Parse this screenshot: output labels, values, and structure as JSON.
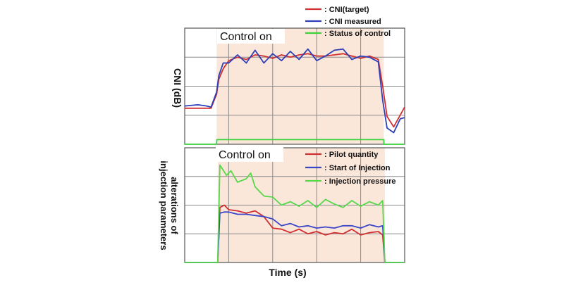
{
  "chart_data": [
    {
      "type": "line",
      "ylabel": "CNI (dB)",
      "annotation": "Control on",
      "grid": true,
      "legend_position": "top-right",
      "xlim": [
        0,
        10
      ],
      "ylim": [
        0,
        10
      ],
      "colors": {
        "target": "#d03030",
        "measured": "#2f3fb8",
        "control": "#3cd23c",
        "shade": "#fbe7da"
      },
      "series": [
        {
          "name": ": CNI(target)",
          "x": [
            0,
            1.2,
            1.45,
            1.55,
            1.75,
            2.0,
            2.4,
            2.8,
            3.2,
            3.6,
            4.0,
            4.4,
            4.8,
            5.2,
            5.6,
            6.0,
            6.4,
            6.8,
            7.2,
            7.6,
            8.0,
            8.4,
            8.8,
            9.0,
            9.2,
            9.5,
            10
          ],
          "y": [
            3.1,
            3.1,
            4.3,
            5.6,
            6.5,
            7.2,
            7.5,
            7.3,
            7.7,
            7.6,
            7.4,
            7.7,
            7.5,
            7.7,
            7.8,
            7.6,
            7.6,
            7.7,
            7.8,
            7.6,
            7.4,
            7.6,
            7.3,
            5.0,
            2.4,
            1.5,
            3.2
          ]
        },
        {
          "name": ": CNI measured",
          "x": [
            0,
            0.6,
            1.0,
            1.2,
            1.45,
            1.55,
            1.75,
            2.0,
            2.4,
            2.8,
            3.2,
            3.6,
            4.0,
            4.4,
            4.8,
            5.2,
            5.6,
            6.0,
            6.4,
            6.8,
            7.2,
            7.6,
            8.0,
            8.4,
            8.8,
            9.0,
            9.2,
            9.5,
            9.8,
            10
          ],
          "y": [
            3.3,
            3.4,
            3.3,
            3.2,
            4.5,
            5.9,
            7.0,
            7.0,
            7.7,
            7.0,
            8.1,
            7.0,
            7.8,
            7.2,
            8.0,
            7.3,
            8.2,
            7.2,
            7.6,
            8.1,
            8.2,
            7.3,
            7.6,
            7.5,
            7.1,
            3.8,
            1.4,
            1.0,
            2.2,
            2.3
          ]
        },
        {
          "name": ": Status of control",
          "x": [
            0,
            1.45,
            1.46,
            9.05,
            9.06,
            10
          ],
          "y": [
            0,
            0,
            0.4,
            0.4,
            0,
            0
          ]
        }
      ]
    },
    {
      "type": "line",
      "xlabel": "Time (s)",
      "ylabel": "alterations of injection parameters",
      "annotation": "Control on",
      "grid": true,
      "legend_position": "top-right",
      "xlim": [
        0,
        10
      ],
      "ylim": [
        0,
        10
      ],
      "colors": {
        "pilot": "#d03030",
        "start": "#3a46c8",
        "pressure": "#56d84a",
        "shade": "#fbe7da"
      },
      "series": [
        {
          "name": ": Pilot quantity",
          "x": [
            0,
            1.5,
            1.6,
            1.8,
            2.0,
            2.4,
            2.8,
            3.2,
            3.6,
            4.0,
            4.4,
            4.8,
            5.2,
            5.6,
            6.0,
            6.4,
            6.8,
            7.2,
            7.6,
            8.0,
            8.4,
            8.8,
            9.0,
            9.1,
            10
          ],
          "y": [
            0,
            0,
            4.8,
            5.0,
            4.6,
            4.5,
            4.3,
            4.5,
            4.0,
            3.0,
            2.9,
            2.6,
            2.9,
            2.5,
            2.7,
            2.4,
            2.6,
            2.5,
            2.9,
            2.4,
            2.6,
            2.7,
            2.4,
            0,
            0
          ]
        },
        {
          "name": ": Start of Injection",
          "x": [
            0,
            1.5,
            1.6,
            1.8,
            2.0,
            2.4,
            2.8,
            3.2,
            3.6,
            4.0,
            4.4,
            4.8,
            5.2,
            5.6,
            6.0,
            6.4,
            6.8,
            7.2,
            7.6,
            8.0,
            8.4,
            8.8,
            9.0,
            9.1,
            10
          ],
          "y": [
            0,
            0,
            4.3,
            4.4,
            4.4,
            4.2,
            4.2,
            4.1,
            4.0,
            3.8,
            3.2,
            3.4,
            3.1,
            3.2,
            3.0,
            3.1,
            3.0,
            3.2,
            3.2,
            3.0,
            3.3,
            3.1,
            3.2,
            0,
            0
          ]
        },
        {
          "name": ": Injection pressure",
          "x": [
            0,
            1.5,
            1.6,
            1.7,
            1.9,
            2.1,
            2.4,
            2.8,
            3.0,
            3.2,
            3.6,
            4.0,
            4.4,
            4.8,
            5.2,
            5.6,
            6.0,
            6.4,
            6.8,
            7.2,
            7.6,
            8.0,
            8.4,
            8.8,
            9.0,
            9.1,
            10
          ],
          "y": [
            0,
            0,
            8.5,
            8.2,
            7.6,
            8.0,
            7.0,
            7.3,
            7.8,
            6.6,
            5.8,
            5.7,
            5.0,
            5.3,
            4.9,
            5.4,
            4.8,
            5.5,
            5.1,
            4.8,
            5.4,
            4.9,
            5.3,
            5.0,
            5.4,
            0,
            0
          ]
        }
      ]
    }
  ]
}
